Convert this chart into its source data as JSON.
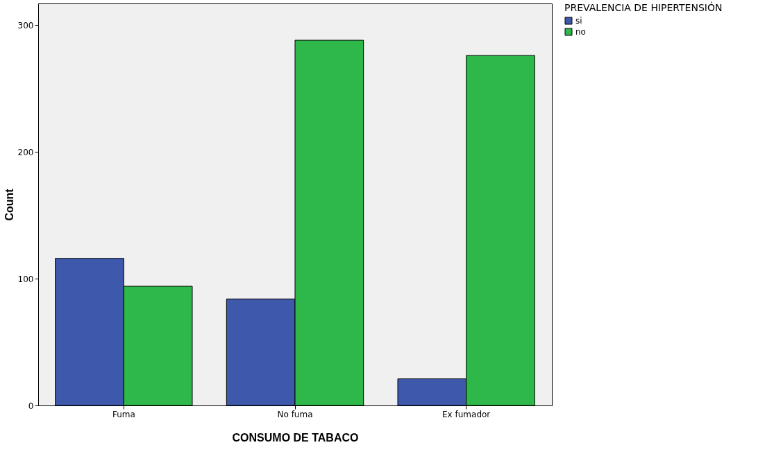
{
  "chart_data": {
    "type": "bar",
    "xlabel": "CONSUMO DE TABACO",
    "ylabel": "Count",
    "legend_title": "PREVALENCIA DE HIPERTENSIÓN",
    "categories": [
      "Fuma",
      "No fuma",
      "Ex fumador"
    ],
    "series": [
      {
        "name": "si",
        "color": "#3e58ac",
        "values": [
          116,
          84,
          21
        ]
      },
      {
        "name": "no",
        "color": "#2fb84a",
        "values": [
          94,
          288,
          276
        ]
      }
    ],
    "ylim": [
      0,
      317
    ],
    "yticks": [
      0,
      100,
      200,
      300
    ],
    "grid": false,
    "legend": "top right"
  }
}
